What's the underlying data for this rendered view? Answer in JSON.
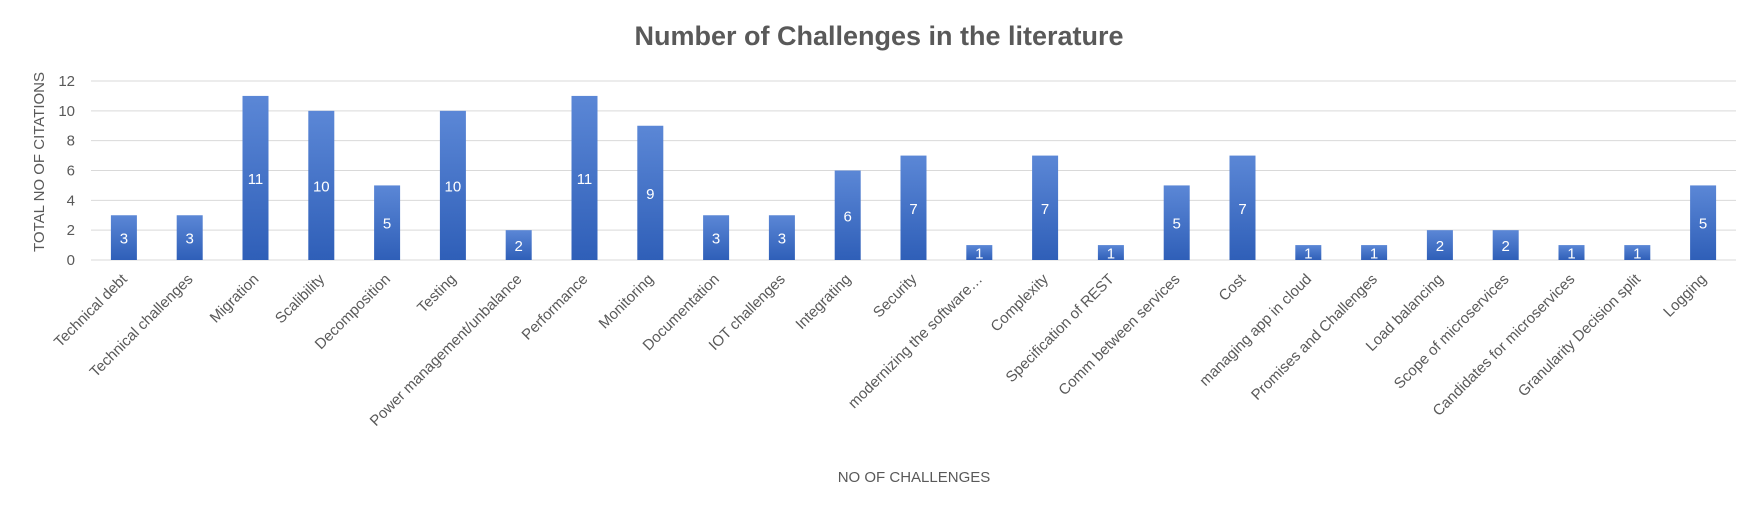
{
  "colors": {
    "bar_top": "#5b87d6",
    "bar_bottom": "#2f5fb8",
    "text": "#595959",
    "grid": "#d9d9d9",
    "data_label": "#ffffff"
  },
  "chart_data": {
    "type": "bar",
    "title": "Number of Challenges in the literature",
    "xlabel": "NO OF CHALLENGES",
    "ylabel": "TOTAL NO OF CITATIONS",
    "ylim": [
      0,
      12
    ],
    "yticks": [
      0,
      2,
      4,
      6,
      8,
      10,
      12
    ],
    "grid": true,
    "legend": "none",
    "categories": [
      "Technical debt",
      "Technical challenges",
      "Migration",
      "Scalibility",
      "Decomposition",
      "Testing",
      "Power management/unbalance",
      "Performance",
      "Monitoring",
      "Documentation",
      "IOT challenges",
      "Integrating",
      "Security",
      "modernizing the software…",
      "Complexity",
      "Specification of REST",
      "Comm between services",
      "Cost",
      "managing app in cloud",
      "Promises and Challenges",
      "Load balancing",
      "Scope of microservices",
      "Candidates for microservices",
      "Granularity Decision split",
      "Logging"
    ],
    "values": [
      3,
      3,
      11,
      10,
      5,
      10,
      2,
      11,
      9,
      3,
      3,
      6,
      7,
      1,
      7,
      1,
      5,
      7,
      1,
      1,
      2,
      2,
      1,
      1,
      5
    ],
    "data_labels": [
      "3",
      "3",
      "11",
      "10",
      "5",
      "10",
      "2",
      "11",
      "9",
      "3",
      "3",
      "6",
      "7",
      "1",
      "7",
      "1",
      "5",
      "7",
      "1",
      "1",
      "2",
      "2",
      "1",
      "1",
      "5"
    ]
  }
}
